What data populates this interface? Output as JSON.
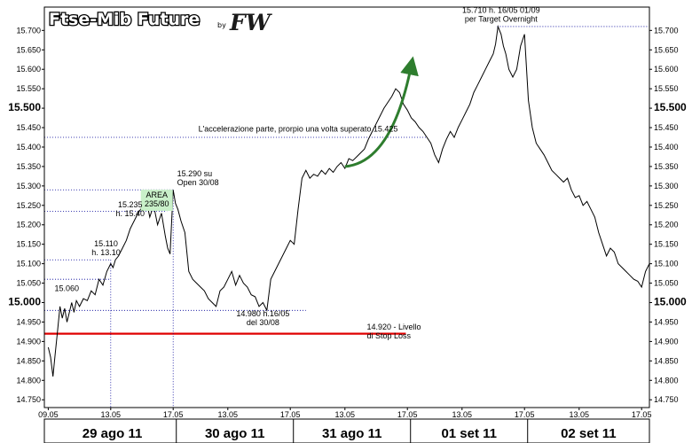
{
  "chart_data": {
    "type": "line",
    "title": "Ftse-Mib Future",
    "title_by": "by",
    "title_logo": "FW",
    "ylim": [
      14730,
      15760
    ],
    "y_ticks": [
      14750,
      14800,
      14850,
      14900,
      14950,
      15000,
      15050,
      15100,
      15150,
      15200,
      15250,
      15300,
      15350,
      15400,
      15450,
      15500,
      15550,
      15600,
      15650,
      15700
    ],
    "y_tick_labels": [
      "14.750",
      "14.800",
      "14.850",
      "14.900",
      "14.950",
      "15.000",
      "15.050",
      "15.100",
      "15.150",
      "15.200",
      "15.250",
      "15.300",
      "15.350",
      "15.400",
      "15.450",
      "15.500",
      "15.550",
      "15.600",
      "15.650",
      "15.700"
    ],
    "y_major_labels": [
      "15.000",
      "15.500"
    ],
    "x_ticks": [
      {
        "t": 0,
        "label": "09.05"
      },
      {
        "t": 8,
        "label": "13.05"
      },
      {
        "t": 16,
        "label": "17.05"
      },
      {
        "t": 23,
        "label": "13.05"
      },
      {
        "t": 31,
        "label": "17.05"
      },
      {
        "t": 38,
        "label": "13.05"
      },
      {
        "t": 46,
        "label": "17.05"
      },
      {
        "t": 53,
        "label": "13.05"
      },
      {
        "t": 61,
        "label": "17.05"
      },
      {
        "t": 68,
        "label": "13.05"
      },
      {
        "t": 76,
        "label": "17.05"
      }
    ],
    "x_range": [
      -0.5,
      77
    ],
    "days": [
      {
        "label": "29 ago 11",
        "t0": 0,
        "t1": 16.4
      },
      {
        "label": "30 ago 11",
        "t0": 16.4,
        "t1": 31.4
      },
      {
        "label": "31 ago 11",
        "t0": 31.4,
        "t1": 46.4
      },
      {
        "label": "01 set 11",
        "t0": 46.4,
        "t1": 61.4
      },
      {
        "label": "02 set 11",
        "t0": 61.4,
        "t1": 77
      }
    ],
    "series": [
      {
        "color": "#000000",
        "x": [
          0,
          0.3,
          0.6,
          0.9,
          1.2,
          1.5,
          1.8,
          2.1,
          2.4,
          2.7,
          3.0,
          3.3,
          3.6,
          4.0,
          4.5,
          5.0,
          5.5,
          6.0,
          6.5,
          7.0,
          7.5,
          8.0,
          8.3,
          8.6,
          9.0,
          9.5,
          10.0,
          10.5,
          11.0,
          11.5,
          12.0,
          12.5,
          13.0,
          13.5,
          14.0,
          14.5,
          15.0,
          15.3,
          15.6,
          16.0,
          16.3,
          16.6,
          17.0,
          17.5,
          18.0,
          18.5,
          19.0,
          19.5,
          20.0,
          20.5,
          21.0,
          21.5,
          22.0,
          22.5,
          23.0,
          23.5,
          24.0,
          24.5,
          25.0,
          25.5,
          26.0,
          26.5,
          27.0,
          27.5,
          28.0,
          28.5,
          29.0,
          29.5,
          30.0,
          30.5,
          31.0,
          31.5,
          32.0,
          32.5,
          33.0,
          33.5,
          34.0,
          34.5,
          35.0,
          35.5,
          36.0,
          36.5,
          37.0,
          37.5,
          38.0,
          38.5,
          39.0,
          39.5,
          40.0,
          40.5,
          41.0,
          41.5,
          42.0,
          42.5,
          43.0,
          43.5,
          44.0,
          44.5,
          45.0,
          45.5,
          46.0,
          46.5,
          47.0,
          47.5,
          48.0,
          48.5,
          49.0,
          49.5,
          50.0,
          50.5,
          51.0,
          51.5,
          52.0,
          52.5,
          53.0,
          53.5,
          54.0,
          54.5,
          55.0,
          55.5,
          56.0,
          56.5,
          57.0,
          57.3,
          57.6,
          58.0,
          58.3,
          58.6,
          59.0,
          59.5,
          60.0,
          60.5,
          61.0,
          61.5,
          62.0,
          62.5,
          63.0,
          63.5,
          64.0,
          64.5,
          65.0,
          65.5,
          66.0,
          66.5,
          67.0,
          67.5,
          68.0,
          68.5,
          69.0,
          69.5,
          70.0,
          70.5,
          71.0,
          71.5,
          72.0,
          72.5,
          73.0,
          73.5,
          74.0,
          74.5,
          75.0,
          75.5,
          76.0,
          76.5,
          77.0
        ],
        "values": [
          14885,
          14860,
          14810,
          14870,
          14930,
          14990,
          14960,
          14985,
          14950,
          14975,
          15000,
          14975,
          15005,
          14990,
          15010,
          15005,
          15030,
          15020,
          15060,
          15045,
          15080,
          15100,
          15090,
          15110,
          15120,
          15140,
          15160,
          15190,
          15210,
          15230,
          15245,
          15270,
          15220,
          15250,
          15200,
          15230,
          15170,
          15140,
          15125,
          15290,
          15255,
          15240,
          15210,
          15180,
          15080,
          15060,
          15050,
          15040,
          15030,
          15010,
          15000,
          14990,
          15030,
          15040,
          15060,
          15080,
          15045,
          15070,
          15050,
          15040,
          15020,
          15015,
          14990,
          15000,
          14980,
          15060,
          15080,
          15100,
          15120,
          15140,
          15160,
          15150,
          15240,
          15320,
          15340,
          15320,
          15330,
          15325,
          15340,
          15330,
          15345,
          15335,
          15350,
          15360,
          15345,
          15370,
          15365,
          15375,
          15385,
          15395,
          15420,
          15440,
          15460,
          15480,
          15500,
          15515,
          15530,
          15550,
          15540,
          15510,
          15495,
          15475,
          15465,
          15450,
          15440,
          15425,
          15410,
          15380,
          15360,
          15395,
          15420,
          15440,
          15425,
          15450,
          15470,
          15490,
          15510,
          15540,
          15560,
          15580,
          15600,
          15620,
          15640,
          15665,
          15710,
          15690,
          15660,
          15640,
          15600,
          15580,
          15600,
          15660,
          15690,
          15520,
          15450,
          15410,
          15395,
          15380,
          15360,
          15340,
          15330,
          15320,
          15310,
          15320,
          15290,
          15270,
          15275,
          15250,
          15260,
          15240,
          15220,
          15180,
          15150,
          15120,
          15140,
          15130,
          15100,
          15090,
          15080,
          15070,
          15060,
          15055,
          15040,
          15080,
          15100
        ]
      }
    ],
    "arrow": {
      "color": "#2e7d2e",
      "from": [
        38,
        15350
      ],
      "ctrl": [
        44,
        15360
      ],
      "to": [
        46.5,
        15610
      ]
    },
    "hlines": [
      {
        "y": 14920,
        "t_end": 45.8,
        "color": "#e00000",
        "style": "solid"
      },
      {
        "y": 15060,
        "t_end": 8,
        "color": "#000099",
        "style": "dotted"
      },
      {
        "y": 15110,
        "t_end": 8,
        "color": "#000099",
        "style": "dotted"
      },
      {
        "y": 15235,
        "t_end": 15.2,
        "color": "#000099",
        "style": "dotted"
      },
      {
        "y": 15290,
        "t_end": 16,
        "color": "#000099",
        "style": "dotted"
      },
      {
        "y": 14980,
        "t_end": 33,
        "color": "#000099",
        "style": "dotted"
      },
      {
        "y": 15425,
        "t_end": 48.5,
        "color": "#000099",
        "style": "dotted"
      },
      {
        "y": 15710,
        "t_end": 77,
        "t_start": 57.5,
        "color": "#000099",
        "style": "dotted"
      }
    ],
    "vlines": [
      {
        "t": 8,
        "y_bottom": 14730,
        "y_top": 15110,
        "color": "#000099"
      },
      {
        "t": 16,
        "y_bottom": 14730,
        "y_top": 15290,
        "color": "#000099"
      }
    ],
    "annotations": [
      {
        "lines": [
          "15.710 h. 16/05 01/09",
          "per Target Overnight"
        ],
        "t": 58,
        "y": 15745,
        "color": "#000",
        "bold": false,
        "anchor": "middle"
      },
      {
        "lines": [
          "L'accelerazione parte, prorpio una volta superato 15.425"
        ],
        "t": 32,
        "y": 15440,
        "color": "#000",
        "bold": false,
        "anchor": "middle"
      },
      {
        "lines": [
          "15.290 su",
          "Open 30/08"
        ],
        "t": 16.5,
        "y": 15325,
        "color": "#000",
        "bold": false,
        "anchor": "start"
      },
      {
        "lines": [
          "AREA",
          "235/80"
        ],
        "t": 13.9,
        "y": 15270,
        "color": "#000",
        "bold": false,
        "anchor": "middle",
        "box": true
      },
      {
        "lines": [
          "15.235",
          "h. 15.40"
        ],
        "t": 10.5,
        "y": 15245,
        "color": "#000",
        "bold": false,
        "anchor": "middle"
      },
      {
        "lines": [
          "15.110",
          "h. 13.10"
        ],
        "t": 7.4,
        "y": 15145,
        "color": "#000",
        "bold": false,
        "anchor": "middle"
      },
      {
        "lines": [
          "15.060"
        ],
        "t": 0.8,
        "y": 15030,
        "color": "#b00000",
        "bold": false,
        "anchor": "start"
      },
      {
        "lines": [
          "14.980  h.16/05",
          "del 30/08"
        ],
        "t": 27.5,
        "y": 14965,
        "color": "#b00000",
        "bold": false,
        "anchor": "middle"
      },
      {
        "lines": [
          "14.920  - Livello",
          "di Stop Loss"
        ],
        "t": 40.8,
        "y": 14930,
        "color": "#b00000",
        "bold": false,
        "anchor": "start"
      }
    ]
  }
}
